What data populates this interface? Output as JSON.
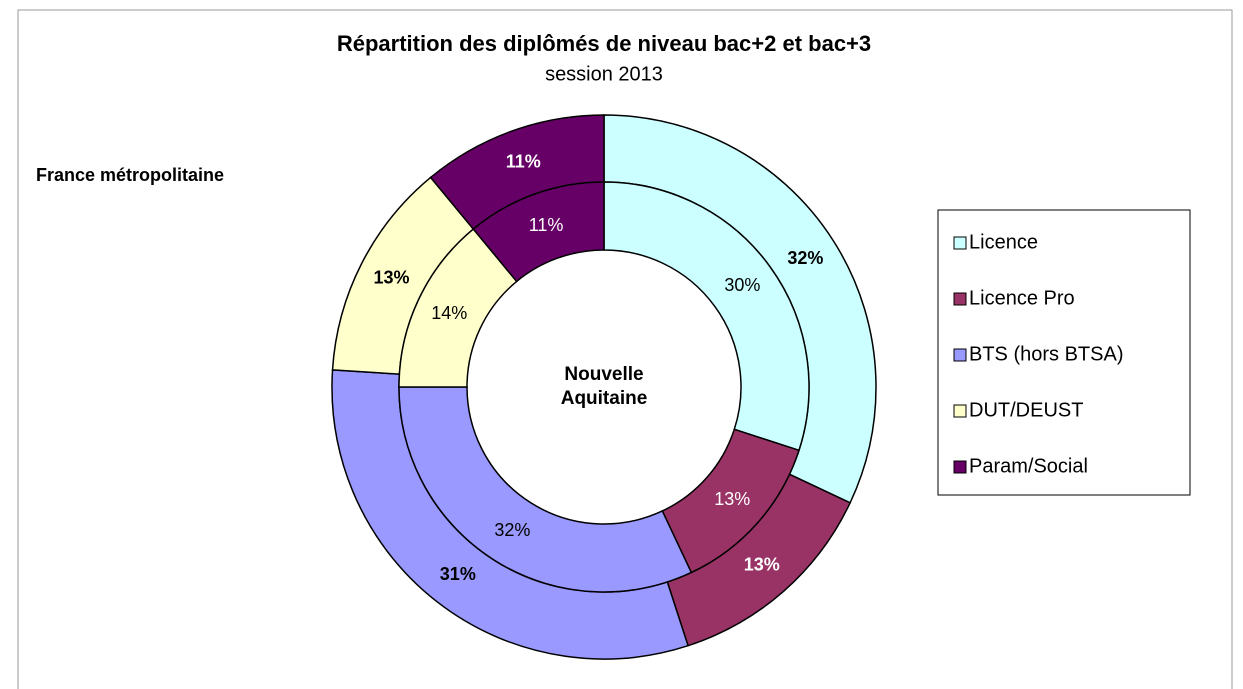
{
  "chart_data": {
    "type": "doughnut",
    "title": "Répartition des diplômés de niveau bac+2 et bac+3",
    "subtitle": "session 2013",
    "categories": [
      "Licence",
      "Licence Pro",
      "BTS (hors BTSA)",
      "DUT/DEUST",
      "Param/Social"
    ],
    "colors": [
      "#ccffff",
      "#993366",
      "#9999ff",
      "#ffffcc",
      "#660066"
    ],
    "series": [
      {
        "name": "France métropolitaine",
        "values": [
          32,
          13,
          31,
          13,
          11
        ],
        "value_labels": [
          "32%",
          "13%",
          "31%",
          "13%",
          "11%"
        ]
      },
      {
        "name": "Nouvelle Aquitaine",
        "values": [
          30,
          13,
          32,
          14,
          11
        ],
        "value_labels": [
          "30%",
          "13%",
          "32%",
          "14%",
          "11%"
        ]
      }
    ],
    "legend": "right"
  }
}
